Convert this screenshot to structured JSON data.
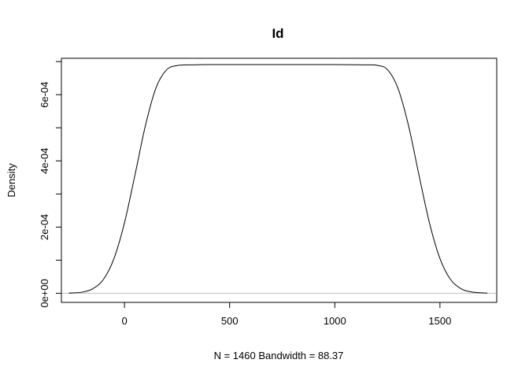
{
  "chart_data": {
    "type": "line",
    "title": "Id",
    "xlabel": "N = 1460   Bandwidth = 88.37",
    "ylabel": "Density",
    "xlim": [
      -300,
      1770
    ],
    "ylim": [
      -2.76e-05,
      0.00071
    ],
    "xticks": [
      0,
      500,
      1000,
      1500
    ],
    "xtick_labels": [
      "0",
      "500",
      "1000",
      "1500"
    ],
    "yticks": [
      0,
      0.0002,
      0.0004,
      0.0006
    ],
    "ytick_labels": [
      "0e+00",
      "2e-04",
      "4e-04",
      "6e-04"
    ],
    "grid": false,
    "baseline": 0,
    "baseline_color": "#bebebe",
    "series": [
      {
        "color": "#000000",
        "x": [
          -265,
          -200,
          -150,
          -100,
          -50,
          0,
          50,
          100,
          150,
          200,
          250,
          300,
          400,
          600,
          800,
          1000,
          1150,
          1200,
          1250,
          1300,
          1350,
          1400,
          1450,
          1500,
          1550,
          1600,
          1650,
          1725
        ],
        "y": [
          5e-07,
          3.5e-06,
          1.4e-05,
          4.2e-05,
          0.000105,
          0.000213,
          0.000358,
          0.000508,
          0.000621,
          0.000675,
          0.000688,
          0.00069,
          0.000691,
          0.000691,
          0.000691,
          0.000691,
          0.00069,
          0.000689,
          0.000676,
          0.00062,
          0.000508,
          0.000358,
          0.000213,
          0.000105,
          4.2e-05,
          1.4e-05,
          4e-06,
          5e-07
        ]
      }
    ]
  }
}
